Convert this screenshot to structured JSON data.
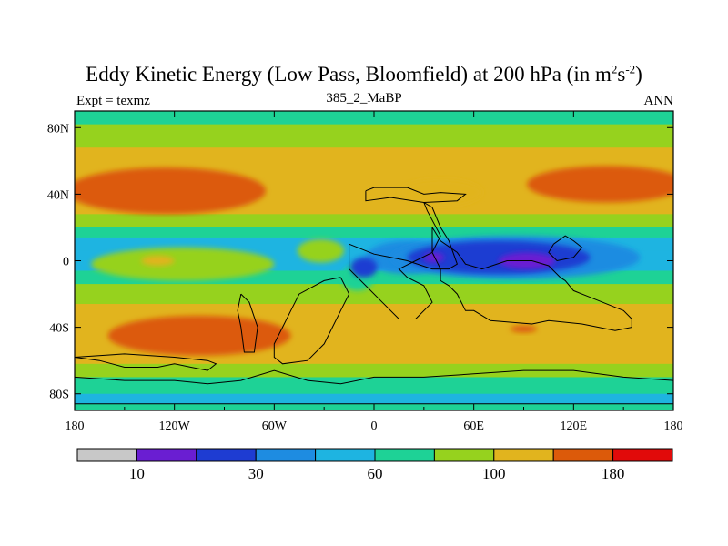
{
  "chart_data": {
    "type": "heatmap",
    "title_main": "Eddy Kinetic Energy (Low Pass, Bloomfield) at 200 hPa (in m",
    "title_sup1": "2",
    "title_mid": "s",
    "title_sup2": "-2",
    "title_end": ")",
    "subtitle_left": "Expt = texmz",
    "subtitle_center": "385_2_MaBP",
    "subtitle_right": "ANN",
    "x_range": [
      -180,
      180
    ],
    "y_range": [
      -90,
      90
    ],
    "x_ticks": [
      {
        "value": -180,
        "label": "180"
      },
      {
        "value": -120,
        "label": "120W"
      },
      {
        "value": -60,
        "label": "60W"
      },
      {
        "value": 0,
        "label": "0"
      },
      {
        "value": 60,
        "label": "60E"
      },
      {
        "value": 120,
        "label": "120E"
      },
      {
        "value": 180,
        "label": "180"
      }
    ],
    "y_ticks": [
      {
        "value": 80,
        "label": "80N"
      },
      {
        "value": 40,
        "label": "40N"
      },
      {
        "value": 0,
        "label": "0"
      },
      {
        "value": -40,
        "label": "40S"
      },
      {
        "value": -80,
        "label": "80S"
      }
    ],
    "contour_levels": [
      10,
      30,
      60,
      100,
      180
    ],
    "colorbar_colors": [
      "#c8c8c8",
      "#6a1ed2",
      "#1e3cd2",
      "#1e8ce1",
      "#1eb4e1",
      "#1ed296",
      "#96d21e",
      "#e1b41e",
      "#dc5a0a",
      "#e10a0a"
    ],
    "colorbar_labels": [
      {
        "index": 1,
        "label": "10"
      },
      {
        "index": 3,
        "label": "30"
      },
      {
        "index": 5,
        "label": "60"
      },
      {
        "index": 7,
        "label": "100"
      },
      {
        "index": 9,
        "label": "180"
      }
    ],
    "bands": [
      {
        "lat": [
          82,
          90
        ],
        "color": "#1ed296"
      },
      {
        "lat": [
          68,
          82
        ],
        "color": "#96d21e"
      },
      {
        "lat": [
          60,
          68
        ],
        "color": "#e1b41e"
      },
      {
        "lat": [
          28,
          60
        ],
        "color": "#e1b41e"
      },
      {
        "lat": [
          20,
          28
        ],
        "color": "#96d21e"
      },
      {
        "lat": [
          14,
          20
        ],
        "color": "#1ed296"
      },
      {
        "lat": [
          6,
          14
        ],
        "color": "#1eb4e1"
      },
      {
        "lat": [
          -6,
          6
        ],
        "color": "#1eb4e1"
      },
      {
        "lat": [
          -14,
          -6
        ],
        "color": "#1ed296"
      },
      {
        "lat": [
          -26,
          -14
        ],
        "color": "#96d21e"
      },
      {
        "lat": [
          -62,
          -26
        ],
        "color": "#e1b41e"
      },
      {
        "lat": [
          -70,
          -62
        ],
        "color": "#96d21e"
      },
      {
        "lat": [
          -80,
          -70
        ],
        "color": "#1ed296"
      },
      {
        "lat": [
          -86,
          -80
        ],
        "color": "#1eb4e1"
      },
      {
        "lat": [
          -90,
          -86
        ],
        "color": "#1ed296"
      }
    ],
    "regions": [
      {
        "name": "nh-jet-west",
        "color": "#dc5a0a",
        "cx": -125,
        "cy": 42,
        "rx": 60,
        "ry": 14
      },
      {
        "name": "nh-jet-east",
        "color": "#dc5a0a",
        "cx": 140,
        "cy": 46,
        "rx": 48,
        "ry": 11
      },
      {
        "name": "nh-yellow-east",
        "color": "#e1b41e",
        "cx": 40,
        "cy": 41,
        "rx": 25,
        "ry": 8
      },
      {
        "name": "eq-pacific-green",
        "color": "#96d21e",
        "cx": -115,
        "cy": -2,
        "rx": 55,
        "ry": 10
      },
      {
        "name": "eq-pacific-yellow",
        "color": "#e1b41e",
        "cx": -130,
        "cy": 0,
        "rx": 10,
        "ry": 3
      },
      {
        "name": "eq-atl-green",
        "color": "#96d21e",
        "cx": -32,
        "cy": 6,
        "rx": 14,
        "ry": 7
      },
      {
        "name": "eq-atl-green2",
        "color": "#1ed296",
        "cx": -10,
        "cy": -10,
        "rx": 10,
        "ry": 8
      },
      {
        "name": "eq-africa-blue",
        "color": "#1e8ce1",
        "cx": 20,
        "cy": 2,
        "rx": 25,
        "ry": 10
      },
      {
        "name": "eq-io-mid",
        "color": "#1e8ce1",
        "cx": 85,
        "cy": 2,
        "rx": 75,
        "ry": 13
      },
      {
        "name": "eq-io-dark",
        "color": "#1e3cd2",
        "cx": 75,
        "cy": 2,
        "rx": 55,
        "ry": 10
      },
      {
        "name": "eq-africa-dark",
        "color": "#1e3cd2",
        "cx": -6,
        "cy": -4,
        "rx": 8,
        "ry": 6
      },
      {
        "name": "eq-io-purple",
        "color": "#6a1ed2",
        "cx": 92,
        "cy": 0,
        "rx": 17,
        "ry": 5
      },
      {
        "name": "eq-africa-purple",
        "color": "#6a1ed2",
        "cx": 36,
        "cy": 2,
        "rx": 6,
        "ry": 3
      },
      {
        "name": "sh-jet",
        "color": "#dc5a0a",
        "cx": -105,
        "cy": -45,
        "rx": 55,
        "ry": 12
      },
      {
        "name": "sh-jet-east",
        "color": "#dc5a0a",
        "cx": 90,
        "cy": -41,
        "rx": 8,
        "ry": 2
      }
    ],
    "land_outlines": [
      [
        [
          -5,
          42
        ],
        [
          0,
          44
        ],
        [
          20,
          44
        ],
        [
          30,
          40
        ],
        [
          40,
          41
        ],
        [
          55,
          40
        ],
        [
          50,
          36
        ],
        [
          30,
          35
        ],
        [
          10,
          38
        ],
        [
          -5,
          36
        ],
        [
          -5,
          42
        ]
      ],
      [
        [
          30,
          35
        ],
        [
          35,
          32
        ],
        [
          40,
          20
        ],
        [
          45,
          12
        ],
        [
          50,
          -2
        ],
        [
          45,
          -5
        ],
        [
          35,
          -5
        ],
        [
          20,
          0
        ],
        [
          10,
          2
        ],
        [
          0,
          4
        ],
        [
          -15,
          10
        ],
        [
          -15,
          -5
        ],
        [
          -5,
          -15
        ],
        [
          5,
          -25
        ],
        [
          15,
          -35
        ],
        [
          25,
          -35
        ],
        [
          35,
          -25
        ],
        [
          30,
          -15
        ],
        [
          20,
          -10
        ],
        [
          15,
          -5
        ],
        [
          25,
          0
        ],
        [
          35,
          5
        ],
        [
          40,
          15
        ],
        [
          32,
          30
        ],
        [
          30,
          35
        ]
      ],
      [
        [
          35,
          20
        ],
        [
          40,
          12
        ],
        [
          50,
          5
        ],
        [
          55,
          -2
        ],
        [
          65,
          -5
        ],
        [
          80,
          0
        ],
        [
          95,
          0
        ],
        [
          105,
          -3
        ],
        [
          112,
          -10
        ],
        [
          115,
          -12
        ],
        [
          120,
          -18
        ],
        [
          130,
          -22
        ],
        [
          145,
          -28
        ],
        [
          150,
          -30
        ],
        [
          155,
          -35
        ],
        [
          155,
          -40
        ],
        [
          145,
          -42
        ],
        [
          135,
          -40
        ],
        [
          125,
          -38
        ],
        [
          105,
          -36
        ],
        [
          95,
          -38
        ],
        [
          70,
          -36
        ],
        [
          60,
          -30
        ],
        [
          55,
          -30
        ],
        [
          50,
          -20
        ],
        [
          45,
          -15
        ],
        [
          40,
          -12
        ],
        [
          40,
          -5
        ],
        [
          35,
          5
        ],
        [
          35,
          20
        ]
      ],
      [
        [
          108,
          10
        ],
        [
          115,
          15
        ],
        [
          120,
          12
        ],
        [
          125,
          8
        ],
        [
          120,
          2
        ],
        [
          110,
          0
        ],
        [
          105,
          5
        ],
        [
          108,
          10
        ]
      ],
      [
        [
          -20,
          -10
        ],
        [
          -30,
          -12
        ],
        [
          -45,
          -20
        ],
        [
          -50,
          -30
        ],
        [
          -55,
          -40
        ],
        [
          -60,
          -50
        ],
        [
          -60,
          -58
        ],
        [
          -55,
          -62
        ],
        [
          -40,
          -60
        ],
        [
          -30,
          -50
        ],
        [
          -25,
          -40
        ],
        [
          -20,
          -30
        ],
        [
          -15,
          -20
        ],
        [
          -20,
          -10
        ]
      ],
      [
        [
          -80,
          -20
        ],
        [
          -75,
          -25
        ],
        [
          -70,
          -40
        ],
        [
          -72,
          -55
        ],
        [
          -78,
          -55
        ],
        [
          -80,
          -40
        ],
        [
          -82,
          -30
        ],
        [
          -80,
          -20
        ]
      ],
      [
        [
          -180,
          -70
        ],
        [
          -150,
          -72
        ],
        [
          -120,
          -72
        ],
        [
          -100,
          -74
        ],
        [
          -80,
          -72
        ],
        [
          -60,
          -66
        ],
        [
          -40,
          -72
        ],
        [
          -20,
          -74
        ],
        [
          0,
          -70
        ],
        [
          30,
          -70
        ],
        [
          60,
          -68
        ],
        [
          90,
          -66
        ],
        [
          120,
          -66
        ],
        [
          150,
          -70
        ],
        [
          180,
          -72
        ],
        [
          180,
          -86
        ],
        [
          -180,
          -86
        ],
        [
          -180,
          -70
        ]
      ],
      [
        [
          -180,
          -58
        ],
        [
          -165,
          -60
        ],
        [
          -150,
          -64
        ],
        [
          -130,
          -64
        ],
        [
          -120,
          -62
        ],
        [
          -110,
          -64
        ],
        [
          -100,
          -66
        ],
        [
          -95,
          -62
        ],
        [
          -100,
          -60
        ],
        [
          -120,
          -58
        ],
        [
          -150,
          -56
        ],
        [
          -180,
          -58
        ]
      ]
    ]
  }
}
